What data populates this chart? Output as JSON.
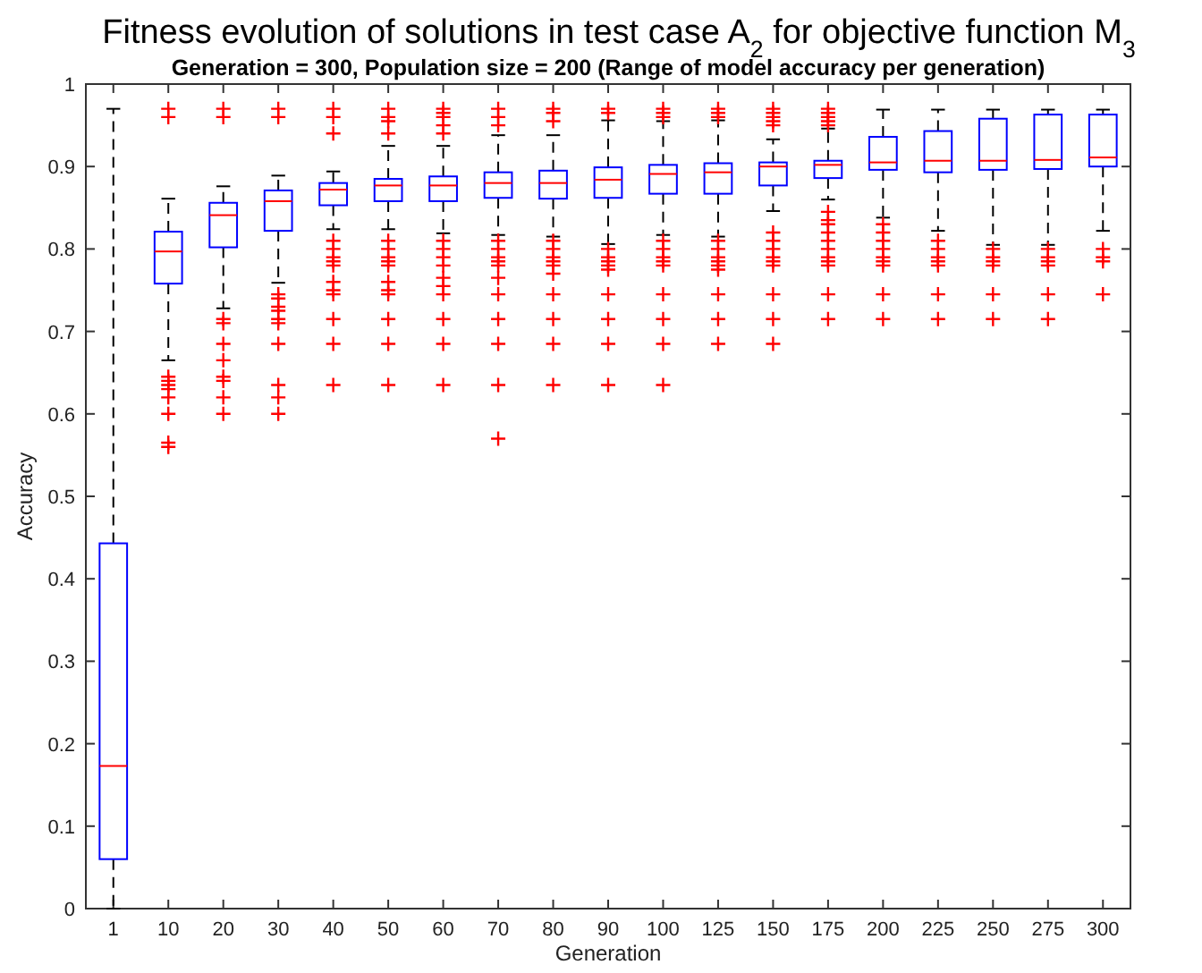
{
  "chart_data": {
    "type": "box",
    "title": "Fitness evolution of solutions in test case A$_{2}$ for objective function M$_{3}$",
    "subtitle": "Generation = 300, Population size = 200 (Range of model accuracy per generation)",
    "xlabel": "Generation",
    "ylabel": "Accuracy",
    "categories": [
      "1",
      "10",
      "20",
      "30",
      "40",
      "50",
      "60",
      "70",
      "80",
      "90",
      "100",
      "125",
      "150",
      "175",
      "200",
      "225",
      "250",
      "275",
      "300"
    ],
    "ylim": [
      0,
      1
    ],
    "yticks": [
      0,
      {
        "value": 0.1,
        "label": "0.1"
      },
      {
        "value": 0.2,
        "label": "0.2"
      },
      {
        "value": 0.3,
        "label": "0.3"
      },
      {
        "value": 0.4,
        "label": "0.4"
      },
      {
        "value": 0.5,
        "label": "0.5"
      },
      {
        "value": 0.6,
        "label": "0.6"
      },
      {
        "value": 0.7,
        "label": "0.7"
      },
      {
        "value": 0.8,
        "label": "0.8"
      },
      {
        "value": 0.9,
        "label": "0.9"
      },
      1
    ],
    "boxes": [
      {
        "low": 0,
        "q1": 0.06,
        "median": 0.173,
        "q3": 0.443,
        "high": 0.97
      },
      {
        "low": 0.665,
        "q1": 0.758,
        "median": 0.797,
        "q3": 0.821,
        "high": 0.861,
        "outliers": [
          0.97,
          0.96,
          0.645,
          0.64,
          0.635,
          0.63,
          0.62,
          0.6,
          0.565,
          0.56
        ]
      },
      {
        "low": 0.728,
        "q1": 0.802,
        "median": 0.841,
        "q3": 0.856,
        "high": 0.876,
        "outliers": [
          0.97,
          0.96,
          0.715,
          0.71,
          0.685,
          0.665,
          0.645,
          0.64,
          0.62,
          0.6
        ]
      },
      {
        "low": 0.759,
        "q1": 0.822,
        "median": 0.858,
        "q3": 0.871,
        "high": 0.889,
        "outliers": [
          0.97,
          0.96,
          0.745,
          0.74,
          0.73,
          0.725,
          0.715,
          0.71,
          0.685,
          0.635,
          0.62,
          0.6
        ]
      },
      {
        "low": 0.824,
        "q1": 0.853,
        "median": 0.872,
        "q3": 0.88,
        "high": 0.894,
        "outliers": [
          0.97,
          0.96,
          0.94,
          0.81,
          0.8,
          0.79,
          0.785,
          0.78,
          0.76,
          0.75,
          0.745,
          0.715,
          0.685,
          0.635
        ]
      },
      {
        "low": 0.824,
        "q1": 0.858,
        "median": 0.877,
        "q3": 0.885,
        "high": 0.925,
        "outliers": [
          0.97,
          0.96,
          0.955,
          0.94,
          0.81,
          0.8,
          0.79,
          0.785,
          0.78,
          0.76,
          0.75,
          0.745,
          0.715,
          0.685,
          0.635
        ]
      },
      {
        "low": 0.819,
        "q1": 0.858,
        "median": 0.877,
        "q3": 0.888,
        "high": 0.925,
        "outliers": [
          0.97,
          0.965,
          0.96,
          0.95,
          0.94,
          0.81,
          0.8,
          0.79,
          0.78,
          0.765,
          0.755,
          0.745,
          0.715,
          0.685,
          0.635
        ]
      },
      {
        "low": 0.817,
        "q1": 0.862,
        "median": 0.88,
        "q3": 0.893,
        "high": 0.938,
        "outliers": [
          0.97,
          0.96,
          0.95,
          0.81,
          0.8,
          0.79,
          0.785,
          0.78,
          0.765,
          0.745,
          0.715,
          0.685,
          0.635,
          0.57
        ]
      },
      {
        "low": 0.815,
        "q1": 0.861,
        "median": 0.88,
        "q3": 0.895,
        "high": 0.938,
        "outliers": [
          0.97,
          0.965,
          0.955,
          0.81,
          0.8,
          0.79,
          0.785,
          0.78,
          0.77,
          0.745,
          0.715,
          0.685,
          0.635
        ]
      },
      {
        "low": 0.806,
        "q1": 0.862,
        "median": 0.884,
        "q3": 0.899,
        "high": 0.956,
        "outliers": [
          0.97,
          0.965,
          0.8,
          0.79,
          0.785,
          0.78,
          0.775,
          0.745,
          0.715,
          0.685,
          0.635
        ]
      },
      {
        "low": 0.817,
        "q1": 0.867,
        "median": 0.891,
        "q3": 0.902,
        "high": 0.955,
        "outliers": [
          0.97,
          0.965,
          0.96,
          0.81,
          0.8,
          0.79,
          0.785,
          0.78,
          0.745,
          0.715,
          0.685,
          0.635
        ]
      },
      {
        "low": 0.815,
        "q1": 0.867,
        "median": 0.893,
        "q3": 0.904,
        "high": 0.956,
        "outliers": [
          0.97,
          0.965,
          0.96,
          0.81,
          0.8,
          0.79,
          0.785,
          0.78,
          0.775,
          0.745,
          0.715,
          0.685
        ]
      },
      {
        "low": 0.846,
        "q1": 0.877,
        "median": 0.9,
        "q3": 0.905,
        "high": 0.933,
        "outliers": [
          0.97,
          0.965,
          0.96,
          0.955,
          0.95,
          0.82,
          0.81,
          0.8,
          0.79,
          0.785,
          0.78,
          0.745,
          0.715,
          0.685
        ]
      },
      {
        "low": 0.86,
        "q1": 0.886,
        "median": 0.902,
        "q3": 0.907,
        "high": 0.946,
        "outliers": [
          0.97,
          0.965,
          0.96,
          0.955,
          0.95,
          0.845,
          0.835,
          0.83,
          0.82,
          0.81,
          0.8,
          0.79,
          0.785,
          0.78,
          0.745,
          0.715
        ]
      },
      {
        "low": 0.838,
        "q1": 0.896,
        "median": 0.905,
        "q3": 0.936,
        "high": 0.969,
        "outliers": [
          0.83,
          0.82,
          0.81,
          0.8,
          0.79,
          0.785,
          0.78,
          0.745,
          0.715
        ]
      },
      {
        "low": 0.822,
        "q1": 0.893,
        "median": 0.907,
        "q3": 0.943,
        "high": 0.969,
        "outliers": [
          0.81,
          0.8,
          0.79,
          0.785,
          0.78,
          0.745,
          0.715
        ]
      },
      {
        "low": 0.805,
        "q1": 0.896,
        "median": 0.907,
        "q3": 0.958,
        "high": 0.969,
        "outliers": [
          0.8,
          0.79,
          0.785,
          0.78,
          0.745,
          0.715
        ]
      },
      {
        "low": 0.805,
        "q1": 0.897,
        "median": 0.908,
        "q3": 0.963,
        "high": 0.969,
        "outliers": [
          0.8,
          0.79,
          0.785,
          0.78,
          0.745,
          0.715
        ]
      },
      {
        "low": 0.822,
        "q1": 0.9,
        "median": 0.911,
        "q3": 0.963,
        "high": 0.969,
        "outliers": [
          0.8,
          0.79,
          0.785,
          0.745
        ]
      }
    ]
  }
}
